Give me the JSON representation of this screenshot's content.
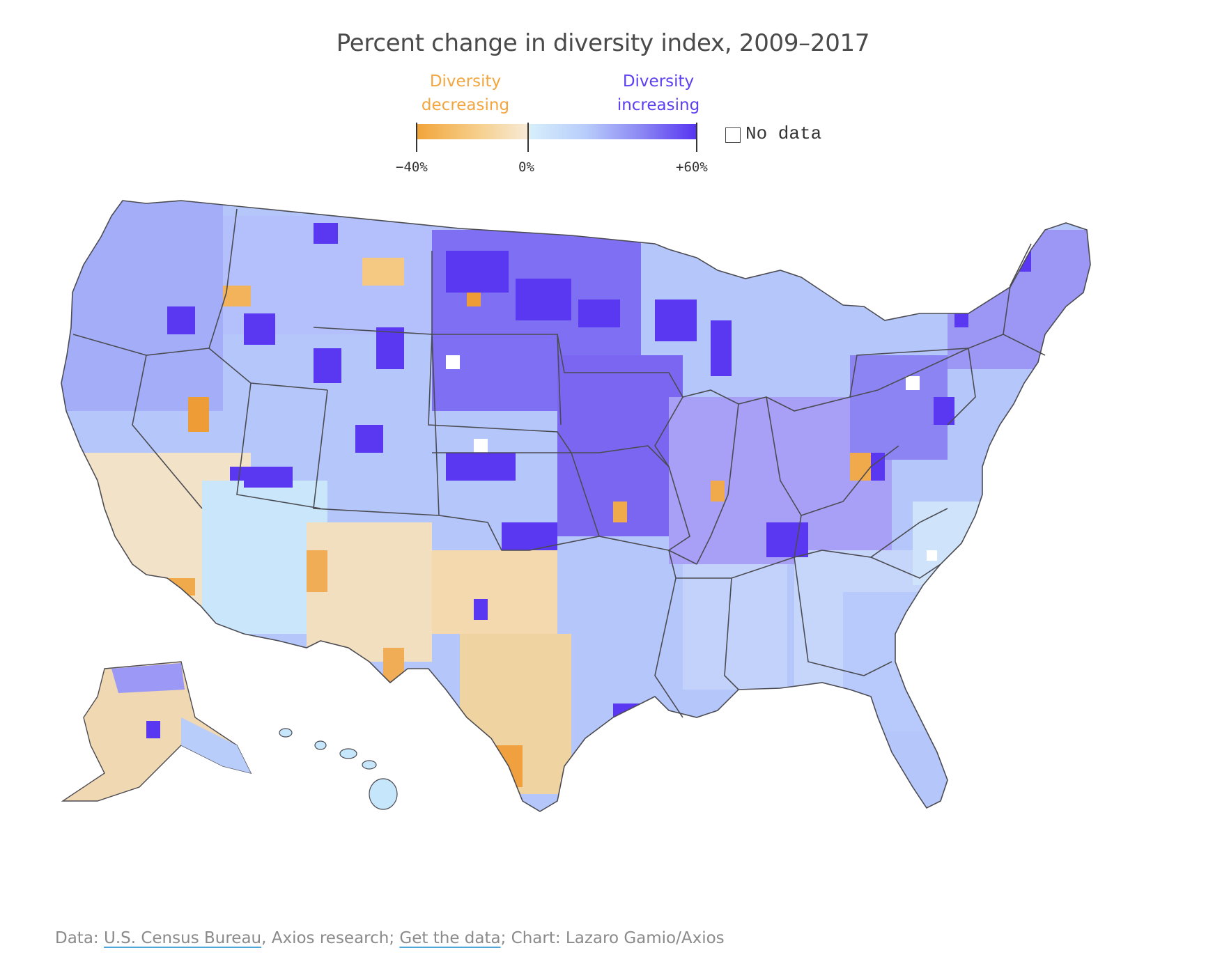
{
  "title": "Percent change in diversity index, 2009–2017",
  "legend": {
    "decreasing_label_1": "Diversity",
    "decreasing_label_2": "decreasing",
    "increasing_label_1": "Diversity",
    "increasing_label_2": "increasing",
    "min_label": "−40%",
    "mid_label": "0%",
    "max_label": "+60%",
    "no_data_label": "No data",
    "scale": {
      "min": -40,
      "mid": 0,
      "max": 60,
      "unit": "%"
    },
    "colors": {
      "decrease_strong": "#f2a43a",
      "decrease_light": "#f7ebd8",
      "neutral_light": "#d6eefb",
      "increase_mid": "#8b87f3",
      "increase_strong": "#5533f1",
      "no_data": "#ffffff"
    }
  },
  "footer": {
    "prefix": "Data: ",
    "source_link": "U.S. Census Bureau",
    "middle": ", Axios research; ",
    "data_link": "Get the data",
    "suffix": "; Chart: Lazaro Gamio/Axios"
  }
}
